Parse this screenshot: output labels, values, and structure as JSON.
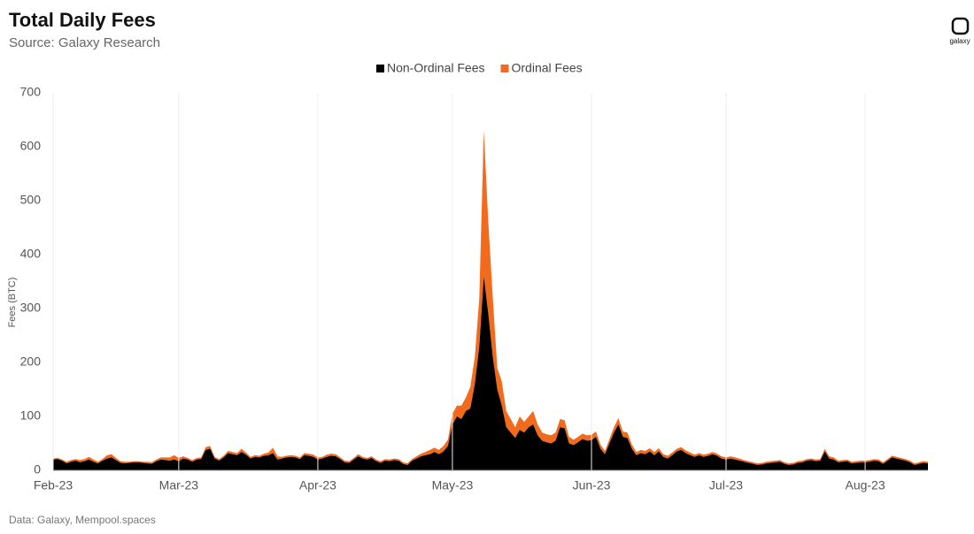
{
  "brand": "galaxy",
  "chart_data": {
    "type": "stacked-area",
    "title": "Total Daily Fees",
    "subtitle": "Source: Galaxy Research",
    "ylabel": "Fees (BTC)",
    "footnote": "Data: Galaxy, Mempool.spaces",
    "legend": "top",
    "grid": true,
    "ylim": [
      0,
      700
    ],
    "yticks": [
      0,
      100,
      200,
      300,
      400,
      500,
      600,
      700
    ],
    "categories": [
      "Feb-23",
      null,
      null,
      null,
      null,
      null,
      null,
      null,
      null,
      null,
      null,
      null,
      null,
      null,
      null,
      null,
      null,
      null,
      null,
      null,
      null,
      null,
      null,
      null,
      null,
      null,
      null,
      null,
      "Mar-23",
      null,
      null,
      null,
      null,
      null,
      null,
      null,
      null,
      null,
      null,
      null,
      null,
      null,
      null,
      null,
      null,
      null,
      null,
      null,
      null,
      null,
      null,
      null,
      null,
      null,
      null,
      null,
      null,
      null,
      null,
      "Apr-23",
      null,
      null,
      null,
      null,
      null,
      null,
      null,
      null,
      null,
      null,
      null,
      null,
      null,
      null,
      null,
      null,
      null,
      null,
      null,
      null,
      null,
      null,
      null,
      null,
      null,
      null,
      null,
      null,
      null,
      "May-23",
      null,
      null,
      null,
      null,
      null,
      null,
      null,
      null,
      null,
      null,
      null,
      null,
      null,
      null,
      null,
      null,
      null,
      null,
      null,
      null,
      null,
      null,
      null,
      null,
      null,
      null,
      null,
      null,
      null,
      null,
      "Jun-23",
      null,
      null,
      null,
      null,
      null,
      null,
      null,
      null,
      null,
      null,
      null,
      null,
      null,
      null,
      null,
      null,
      null,
      null,
      null,
      null,
      null,
      null,
      null,
      null,
      null,
      null,
      null,
      null,
      null,
      "Jul-23",
      null,
      null,
      null,
      null,
      null,
      null,
      null,
      null,
      null,
      null,
      null,
      null,
      null,
      null,
      null,
      null,
      null,
      null,
      null,
      null,
      null,
      null,
      null,
      null,
      null,
      null,
      null,
      null,
      null,
      null,
      "Aug-23",
      null,
      null,
      null,
      null,
      null,
      null,
      null,
      null,
      null,
      null,
      null,
      null,
      null,
      null
    ],
    "series": [
      {
        "name": "Non-Ordinal Fees",
        "color": "#000000",
        "values": [
          20,
          21,
          18,
          13,
          16,
          18,
          15,
          17,
          20,
          16,
          13,
          18,
          22,
          24,
          19,
          14,
          13,
          14,
          15,
          15,
          14,
          13,
          12,
          17,
          20,
          19,
          18,
          20,
          17,
          22,
          20,
          16,
          20,
          21,
          38,
          40,
          22,
          18,
          24,
          32,
          30,
          28,
          34,
          29,
          22,
          25,
          24,
          27,
          28,
          32,
          20,
          22,
          24,
          25,
          24,
          21,
          28,
          27,
          25,
          20,
          22,
          25,
          27,
          26,
          21,
          15,
          14,
          20,
          26,
          22,
          20,
          23,
          17,
          14,
          18,
          17,
          19,
          18,
          12,
          10,
          18,
          22,
          26,
          28,
          30,
          34,
          30,
          35,
          45,
          85,
          100,
          95,
          110,
          115,
          160,
          230,
          360,
          290,
          210,
          150,
          120,
          80,
          70,
          60,
          75,
          70,
          80,
          85,
          65,
          55,
          52,
          50,
          55,
          80,
          78,
          50,
          47,
          52,
          58,
          55,
          56,
          62,
          40,
          30,
          50,
          70,
          85,
          62,
          60,
          40,
          28,
          32,
          30,
          35,
          28,
          35,
          25,
          22,
          28,
          35,
          38,
          32,
          28,
          25,
          28,
          25,
          27,
          30,
          27,
          22,
          20,
          22,
          20,
          18,
          16,
          14,
          12,
          10,
          11,
          13,
          14,
          15,
          16,
          12,
          10,
          11,
          14,
          15,
          18,
          19,
          17,
          18,
          35,
          22,
          20,
          15,
          16,
          17,
          13,
          14,
          15,
          15,
          16,
          18,
          17,
          12,
          18,
          24,
          22,
          20,
          18,
          15,
          10,
          12,
          14,
          13
        ]
      },
      {
        "name": "Ordinal Fees",
        "color": "#f26a1b",
        "values": [
          2,
          2,
          2,
          3,
          3,
          3,
          4,
          4,
          5,
          4,
          3,
          3,
          6,
          6,
          4,
          3,
          3,
          2,
          2,
          2,
          2,
          3,
          3,
          3,
          4,
          5,
          6,
          8,
          6,
          4,
          3,
          3,
          3,
          3,
          5,
          5,
          3,
          3,
          3,
          4,
          4,
          4,
          6,
          4,
          3,
          3,
          3,
          4,
          5,
          10,
          6,
          3,
          3,
          3,
          3,
          3,
          4,
          4,
          4,
          4,
          3,
          4,
          4,
          4,
          3,
          3,
          3,
          3,
          4,
          3,
          3,
          3,
          3,
          3,
          3,
          3,
          3,
          3,
          3,
          3,
          3,
          4,
          5,
          6,
          8,
          8,
          8,
          10,
          12,
          20,
          20,
          25,
          25,
          40,
          50,
          90,
          270,
          170,
          110,
          40,
          45,
          30,
          25,
          20,
          25,
          20,
          20,
          25,
          20,
          15,
          15,
          15,
          15,
          15,
          15,
          12,
          10,
          10,
          10,
          10,
          10,
          10,
          8,
          6,
          8,
          10,
          12,
          10,
          10,
          8,
          6,
          6,
          6,
          6,
          6,
          6,
          5,
          5,
          5,
          5,
          5,
          5,
          5,
          4,
          4,
          4,
          4,
          4,
          4,
          4,
          4,
          4,
          4,
          4,
          3,
          3,
          3,
          3,
          3,
          3,
          3,
          3,
          3,
          3,
          3,
          3,
          3,
          3,
          3,
          3,
          3,
          3,
          5,
          4,
          4,
          3,
          3,
          3,
          3,
          3,
          3,
          3,
          3,
          3,
          3,
          3,
          3,
          3,
          3,
          3,
          3,
          3,
          3,
          3,
          3,
          3
        ]
      }
    ]
  }
}
